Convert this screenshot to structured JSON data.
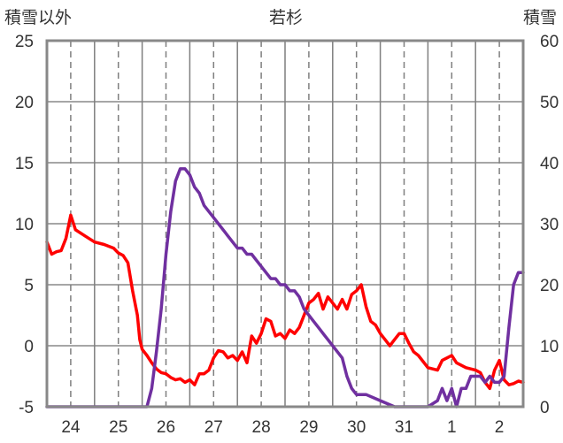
{
  "chart_data": {
    "type": "line",
    "title": "若杉",
    "left_axis_title": "積雪以外",
    "right_axis_title": "積雪",
    "left_ylim": [
      -5,
      25
    ],
    "left_ticks": [
      "25",
      "20",
      "15",
      "10",
      "5",
      "0",
      "-5"
    ],
    "right_ylim": [
      0,
      60
    ],
    "right_ticks": [
      "60",
      "50",
      "40",
      "30",
      "20",
      "10",
      "0"
    ],
    "x_day_range": [
      23.5,
      33.5
    ],
    "x_ticks": [
      {
        "day": 24,
        "label": "24"
      },
      {
        "day": 25,
        "label": "25"
      },
      {
        "day": 26,
        "label": "26"
      },
      {
        "day": 27,
        "label": "27"
      },
      {
        "day": 28,
        "label": "28"
      },
      {
        "day": 29,
        "label": "29"
      },
      {
        "day": 30,
        "label": "30"
      },
      {
        "day": 31,
        "label": "31"
      },
      {
        "day": 32,
        "label": "1"
      },
      {
        "day": 33,
        "label": "2"
      }
    ],
    "grid": true,
    "series": [
      {
        "axis": "left",
        "color": "#ff0000",
        "points": [
          [
            23.5,
            8.5
          ],
          [
            23.6,
            7.5
          ],
          [
            23.7,
            7.7
          ],
          [
            23.8,
            7.8
          ],
          [
            23.9,
            8.8
          ],
          [
            24.0,
            10.7
          ],
          [
            24.1,
            9.5
          ],
          [
            24.3,
            9.0
          ],
          [
            24.5,
            8.5
          ],
          [
            24.7,
            8.3
          ],
          [
            24.9,
            8.0
          ],
          [
            25.0,
            7.6
          ],
          [
            25.1,
            7.4
          ],
          [
            25.2,
            6.8
          ],
          [
            25.3,
            4.5
          ],
          [
            25.4,
            2.5
          ],
          [
            25.45,
            0.5
          ],
          [
            25.5,
            -0.3
          ],
          [
            25.6,
            -0.8
          ],
          [
            25.7,
            -1.4
          ],
          [
            25.8,
            -1.9
          ],
          [
            25.9,
            -2.2
          ],
          [
            26.0,
            -2.3
          ],
          [
            26.1,
            -2.6
          ],
          [
            26.2,
            -2.8
          ],
          [
            26.3,
            -2.7
          ],
          [
            26.4,
            -3.0
          ],
          [
            26.5,
            -2.8
          ],
          [
            26.6,
            -3.2
          ],
          [
            26.7,
            -2.3
          ],
          [
            26.8,
            -2.3
          ],
          [
            26.9,
            -2.0
          ],
          [
            27.0,
            -1.0
          ],
          [
            27.1,
            -0.4
          ],
          [
            27.2,
            -0.5
          ],
          [
            27.3,
            -1.0
          ],
          [
            27.4,
            -0.8
          ],
          [
            27.5,
            -1.2
          ],
          [
            27.6,
            -0.5
          ],
          [
            27.7,
            -1.4
          ],
          [
            27.8,
            0.8
          ],
          [
            27.9,
            0.2
          ],
          [
            28.0,
            1.0
          ],
          [
            28.1,
            2.2
          ],
          [
            28.2,
            2.0
          ],
          [
            28.3,
            0.8
          ],
          [
            28.4,
            1.0
          ],
          [
            28.5,
            0.6
          ],
          [
            28.6,
            1.3
          ],
          [
            28.7,
            1.0
          ],
          [
            28.8,
            1.5
          ],
          [
            28.9,
            2.5
          ],
          [
            29.0,
            3.5
          ],
          [
            29.1,
            3.8
          ],
          [
            29.2,
            4.3
          ],
          [
            29.3,
            3.0
          ],
          [
            29.4,
            4.0
          ],
          [
            29.5,
            3.5
          ],
          [
            29.6,
            3.0
          ],
          [
            29.7,
            3.8
          ],
          [
            29.8,
            3.0
          ],
          [
            29.9,
            4.2
          ],
          [
            30.0,
            4.5
          ],
          [
            30.1,
            5.0
          ],
          [
            30.2,
            3.2
          ],
          [
            30.3,
            2.0
          ],
          [
            30.4,
            1.7
          ],
          [
            30.5,
            1.0
          ],
          [
            30.6,
            0.5
          ],
          [
            30.7,
            0.0
          ],
          [
            30.8,
            0.5
          ],
          [
            30.9,
            1.0
          ],
          [
            31.0,
            1.0
          ],
          [
            31.1,
            0.2
          ],
          [
            31.2,
            -0.5
          ],
          [
            31.3,
            -0.8
          ],
          [
            31.5,
            -1.8
          ],
          [
            31.7,
            -2.0
          ],
          [
            31.8,
            -1.2
          ],
          [
            31.9,
            -1.0
          ],
          [
            32.0,
            -0.8
          ],
          [
            32.1,
            -1.4
          ],
          [
            32.3,
            -1.8
          ],
          [
            32.5,
            -2.0
          ],
          [
            32.6,
            -2.2
          ],
          [
            32.7,
            -3.0
          ],
          [
            32.8,
            -3.5
          ],
          [
            32.9,
            -2.0
          ],
          [
            33.0,
            -1.2
          ],
          [
            33.1,
            -2.8
          ],
          [
            33.2,
            -3.2
          ],
          [
            33.3,
            -3.1
          ],
          [
            33.4,
            -2.9
          ],
          [
            33.5,
            -3.0
          ]
        ]
      },
      {
        "axis": "right",
        "color": "#7030a0",
        "points": [
          [
            23.5,
            0
          ],
          [
            25.6,
            0
          ],
          [
            25.7,
            3
          ],
          [
            25.8,
            9
          ],
          [
            25.9,
            16
          ],
          [
            26.0,
            25
          ],
          [
            26.1,
            32
          ],
          [
            26.2,
            37
          ],
          [
            26.3,
            39
          ],
          [
            26.4,
            39
          ],
          [
            26.5,
            38
          ],
          [
            26.6,
            36
          ],
          [
            26.7,
            35
          ],
          [
            26.8,
            33
          ],
          [
            26.9,
            32
          ],
          [
            27.0,
            31
          ],
          [
            27.1,
            30
          ],
          [
            27.2,
            29
          ],
          [
            27.3,
            28
          ],
          [
            27.4,
            27
          ],
          [
            27.5,
            26
          ],
          [
            27.6,
            26
          ],
          [
            27.7,
            25
          ],
          [
            27.8,
            25
          ],
          [
            27.9,
            24
          ],
          [
            28.0,
            23
          ],
          [
            28.1,
            22
          ],
          [
            28.2,
            21
          ],
          [
            28.3,
            21
          ],
          [
            28.4,
            20
          ],
          [
            28.5,
            20
          ],
          [
            28.6,
            19
          ],
          [
            28.7,
            19
          ],
          [
            28.8,
            18
          ],
          [
            28.9,
            16
          ],
          [
            29.0,
            15
          ],
          [
            29.1,
            14
          ],
          [
            29.2,
            13
          ],
          [
            29.3,
            12
          ],
          [
            29.4,
            11
          ],
          [
            29.5,
            10
          ],
          [
            29.6,
            9
          ],
          [
            29.7,
            8
          ],
          [
            29.8,
            5
          ],
          [
            29.9,
            3
          ],
          [
            30.0,
            2
          ],
          [
            30.2,
            2
          ],
          [
            30.5,
            1
          ],
          [
            30.8,
            0
          ],
          [
            31.0,
            0
          ],
          [
            31.2,
            0
          ],
          [
            31.5,
            0
          ],
          [
            31.7,
            1
          ],
          [
            31.8,
            3
          ],
          [
            31.9,
            1
          ],
          [
            32.0,
            3
          ],
          [
            32.1,
            0
          ],
          [
            32.2,
            3
          ],
          [
            32.3,
            3
          ],
          [
            32.4,
            5
          ],
          [
            32.5,
            5
          ],
          [
            32.6,
            5
          ],
          [
            32.7,
            4
          ],
          [
            32.8,
            5
          ],
          [
            32.9,
            4
          ],
          [
            33.0,
            4
          ],
          [
            33.1,
            5
          ],
          [
            33.2,
            13
          ],
          [
            33.3,
            20
          ],
          [
            33.4,
            22
          ],
          [
            33.5,
            22
          ]
        ]
      }
    ]
  }
}
